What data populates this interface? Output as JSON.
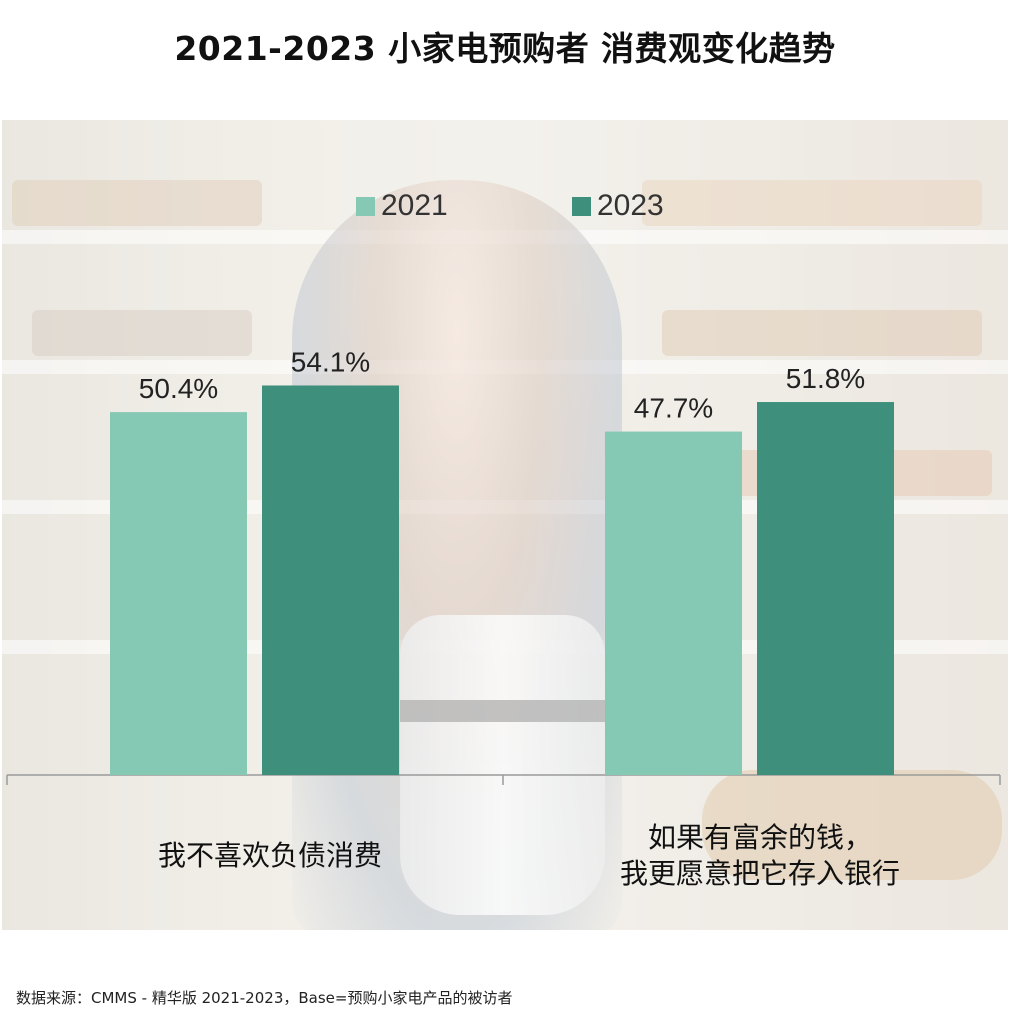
{
  "title": "2021-2023  小家电预购者  消费观变化趋势",
  "source_note": "数据来源：CMMS - 精华版 2021-2023，Base=预购小家电产品的被访者",
  "colors": {
    "series_2021": "#85c9b5",
    "series_2023": "#3e8f7c"
  },
  "chart_data": {
    "type": "bar",
    "categories": [
      [
        "我不喜欢负债消费"
      ],
      [
        "如果有富余的钱，",
        "我更愿意把它存入银行"
      ]
    ],
    "series": [
      {
        "name": "2021",
        "values": [
          50.4,
          47.7
        ],
        "labels": [
          "50.4%",
          "47.7%"
        ]
      },
      {
        "name": "2023",
        "values": [
          54.1,
          51.8
        ],
        "labels": [
          "54.1%",
          "51.8%"
        ]
      }
    ],
    "ylim": [
      0,
      70
    ],
    "grid": false,
    "legend_position": "top"
  }
}
